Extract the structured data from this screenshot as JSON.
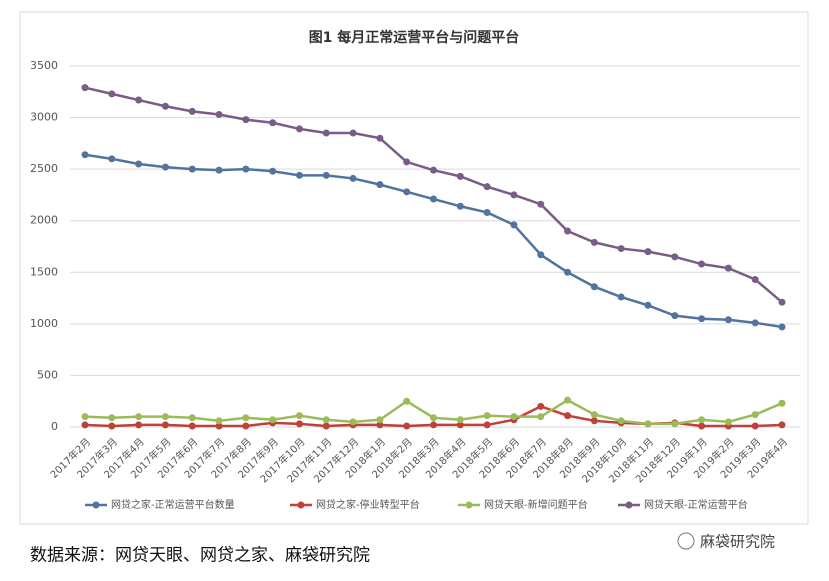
{
  "chart_data": {
    "type": "line",
    "title": "图1   每月正常运营平台与问题平台",
    "categories": [
      "2017年2月",
      "2017年3月",
      "2017年4月",
      "2017年5月",
      "2017年6月",
      "2017年7月",
      "2017年8月",
      "2017年9月",
      "2017年10月",
      "2017年11月",
      "2017年12月",
      "2018年1月",
      "2018年2月",
      "2018年3月",
      "2018年4月",
      "2018年5月",
      "2018年6月",
      "2018年7月",
      "2018年8月",
      "2018年9月",
      "2018年10月",
      "2018年11月",
      "2018年12月",
      "2019年1月",
      "2019年2月",
      "2019年3月",
      "2019年4月"
    ],
    "series": [
      {
        "name": "网贷之家-正常运营平台数量",
        "color": "#52739e",
        "values": [
          2640,
          2600,
          2550,
          2520,
          2500,
          2490,
          2500,
          2480,
          2440,
          2440,
          2410,
          2350,
          2280,
          2210,
          2140,
          2080,
          1960,
          1670,
          1500,
          1360,
          1260,
          1180,
          1080,
          1050,
          1040,
          1010,
          970
        ]
      },
      {
        "name": "网贷之家-停业转型平台",
        "color": "#c0403b",
        "values": [
          20,
          10,
          20,
          20,
          10,
          10,
          10,
          40,
          30,
          10,
          20,
          20,
          10,
          20,
          20,
          20,
          70,
          200,
          110,
          60,
          40,
          30,
          40,
          10,
          10,
          10,
          20
        ]
      },
      {
        "name": "网贷天眼-新增问题平台",
        "color": "#9bbb59",
        "values": [
          100,
          90,
          100,
          100,
          90,
          60,
          90,
          70,
          110,
          70,
          50,
          70,
          250,
          90,
          70,
          110,
          100,
          100,
          260,
          120,
          60,
          30,
          30,
          70,
          50,
          120,
          230
        ]
      },
      {
        "name": "网贷天眼-正常运营平台",
        "color": "#7a5c86",
        "values": [
          3290,
          3230,
          3170,
          3110,
          3060,
          3030,
          2980,
          2950,
          2890,
          2850,
          2850,
          2800,
          2570,
          2490,
          2430,
          2330,
          2250,
          2160,
          1900,
          1790,
          1730,
          1700,
          1650,
          1580,
          1540,
          1430,
          1210
        ]
      }
    ],
    "ylim": [
      0,
      3500
    ],
    "yticks": [
      0,
      500,
      1000,
      1500,
      2000,
      2500,
      3000,
      3500
    ],
    "grid": true
  },
  "footer": {
    "source": "数据来源：网贷天眼、网贷之家、麻袋研究院",
    "watermark": "麻袋研究院"
  }
}
